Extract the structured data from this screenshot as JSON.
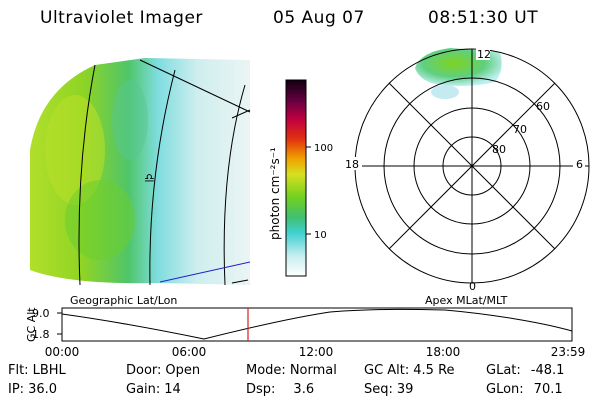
{
  "header": {
    "title": "Ultraviolet Imager",
    "date": "05 Aug 07",
    "time": "08:51:30 UT"
  },
  "colorbar": {
    "label": "photon cm⁻²s⁻¹",
    "ticks": [
      "100",
      "10"
    ]
  },
  "left_map": {
    "caption": "Geographic Lat/Lon"
  },
  "right_map": {
    "caption": "Apex MLat/MLT",
    "mlt_labels": {
      "top": "12",
      "bottom": "0",
      "left": "18",
      "right": "6"
    },
    "lat_labels": [
      "60",
      "70",
      "80"
    ]
  },
  "orbit_plot": {
    "ylabel": "GC Alt",
    "yticks": [
      "9.0",
      "1.8"
    ],
    "xticks": [
      "00:00",
      "06:00",
      "12:00",
      "18:00",
      "23:59"
    ]
  },
  "info": {
    "flt_label": "Flt:",
    "flt_value": "LBHL",
    "ip_label": "IP:",
    "ip_value": "36.0",
    "door_label": "Door:",
    "door_value": "Open",
    "gain_label": "Gain:",
    "gain_value": "14",
    "mode_label": "Mode:",
    "mode_value": "Normal",
    "dsp_label": "Dsp:",
    "dsp_value": "3.6",
    "gcalt_label": "GC Alt:",
    "gcalt_value": "4.5 Re",
    "seq_label": "Seq:",
    "seq_value": "39",
    "glat_label": "GLat:",
    "glat_value": "-48.1",
    "glon_label": "GLon:",
    "glon_value": "70.1"
  },
  "colors": {
    "aurora_green": "#7ed321",
    "aurora_yellow": "#c8e830",
    "aurora_cyan": "#7fe0e8",
    "marker_red": "#d62020"
  }
}
